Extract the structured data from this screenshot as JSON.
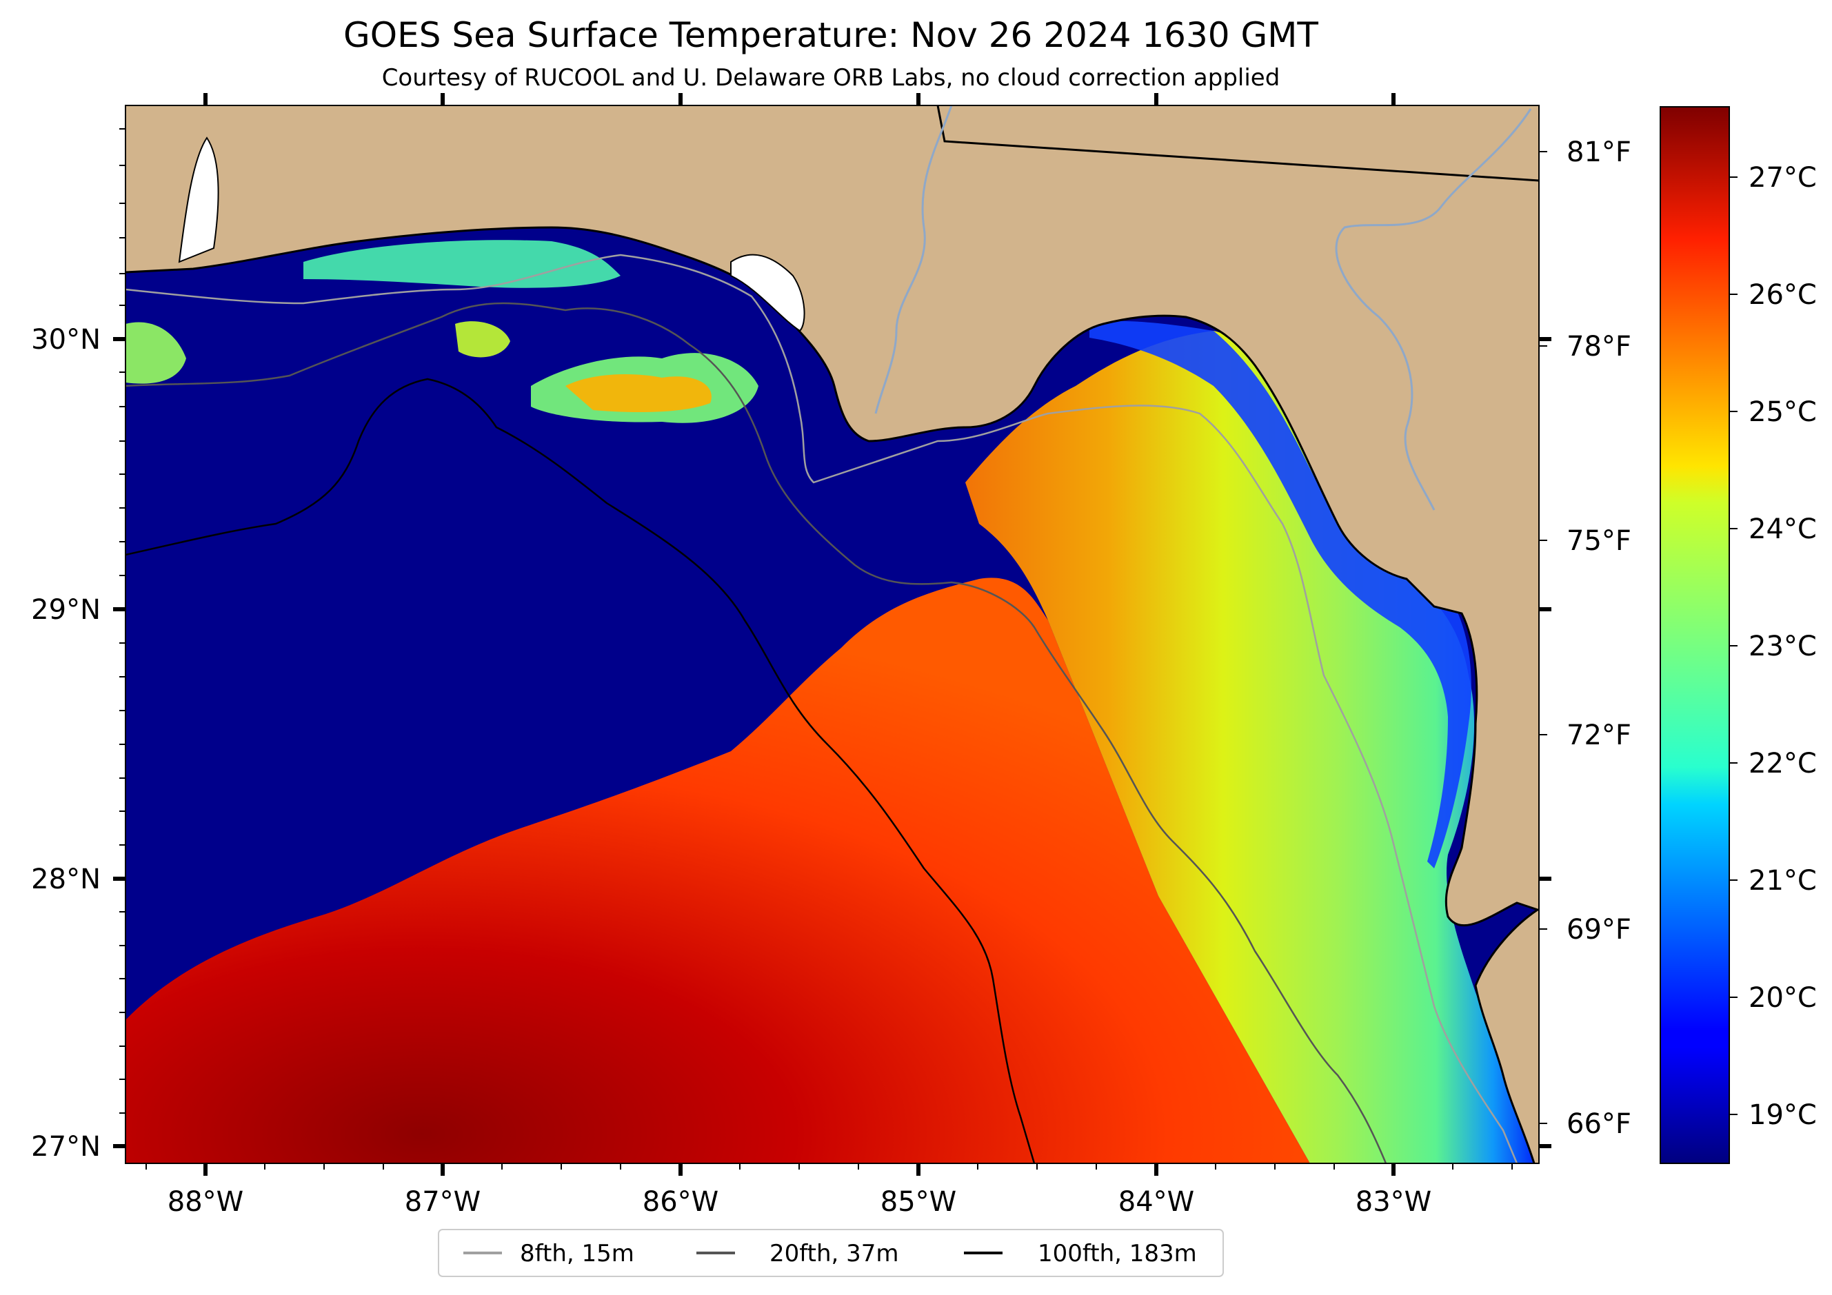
{
  "title": "GOES Sea Surface Temperature: Nov 26 2024 1630 GMT",
  "subtitle": "Courtesy of RUCOOL and U. Delaware ORB Labs, no cloud correction applied",
  "map": {
    "lon_range": [
      -88.33,
      -82.38
    ],
    "lat_range": [
      26.93,
      30.85
    ],
    "lon_ticks": [
      "88°W",
      "87°W",
      "86°W",
      "85°W",
      "84°W",
      "83°W"
    ],
    "lat_ticks": [
      "30°N",
      "29°N",
      "28°N",
      "27°N"
    ],
    "right_axis_ticks": [
      "81°F",
      "78°F",
      "75°F",
      "72°F",
      "69°F",
      "66°F"
    ],
    "colors": {
      "land": "#d2b48c",
      "cold": "#00008b",
      "coastline": "#000000"
    }
  },
  "colorbar": {
    "colormap": "jet",
    "range_c": [
      18.6,
      27.6
    ],
    "ticks": [
      "27°C",
      "26°C",
      "25°C",
      "24°C",
      "23°C",
      "22°C",
      "21°C",
      "20°C",
      "19°C"
    ]
  },
  "legend": {
    "items": [
      {
        "label": "8fth, 15m",
        "color": "#a0a0a0"
      },
      {
        "label": "20fth, 37m",
        "color": "#555555"
      },
      {
        "label": "100fth, 183m",
        "color": "#000000"
      }
    ]
  }
}
